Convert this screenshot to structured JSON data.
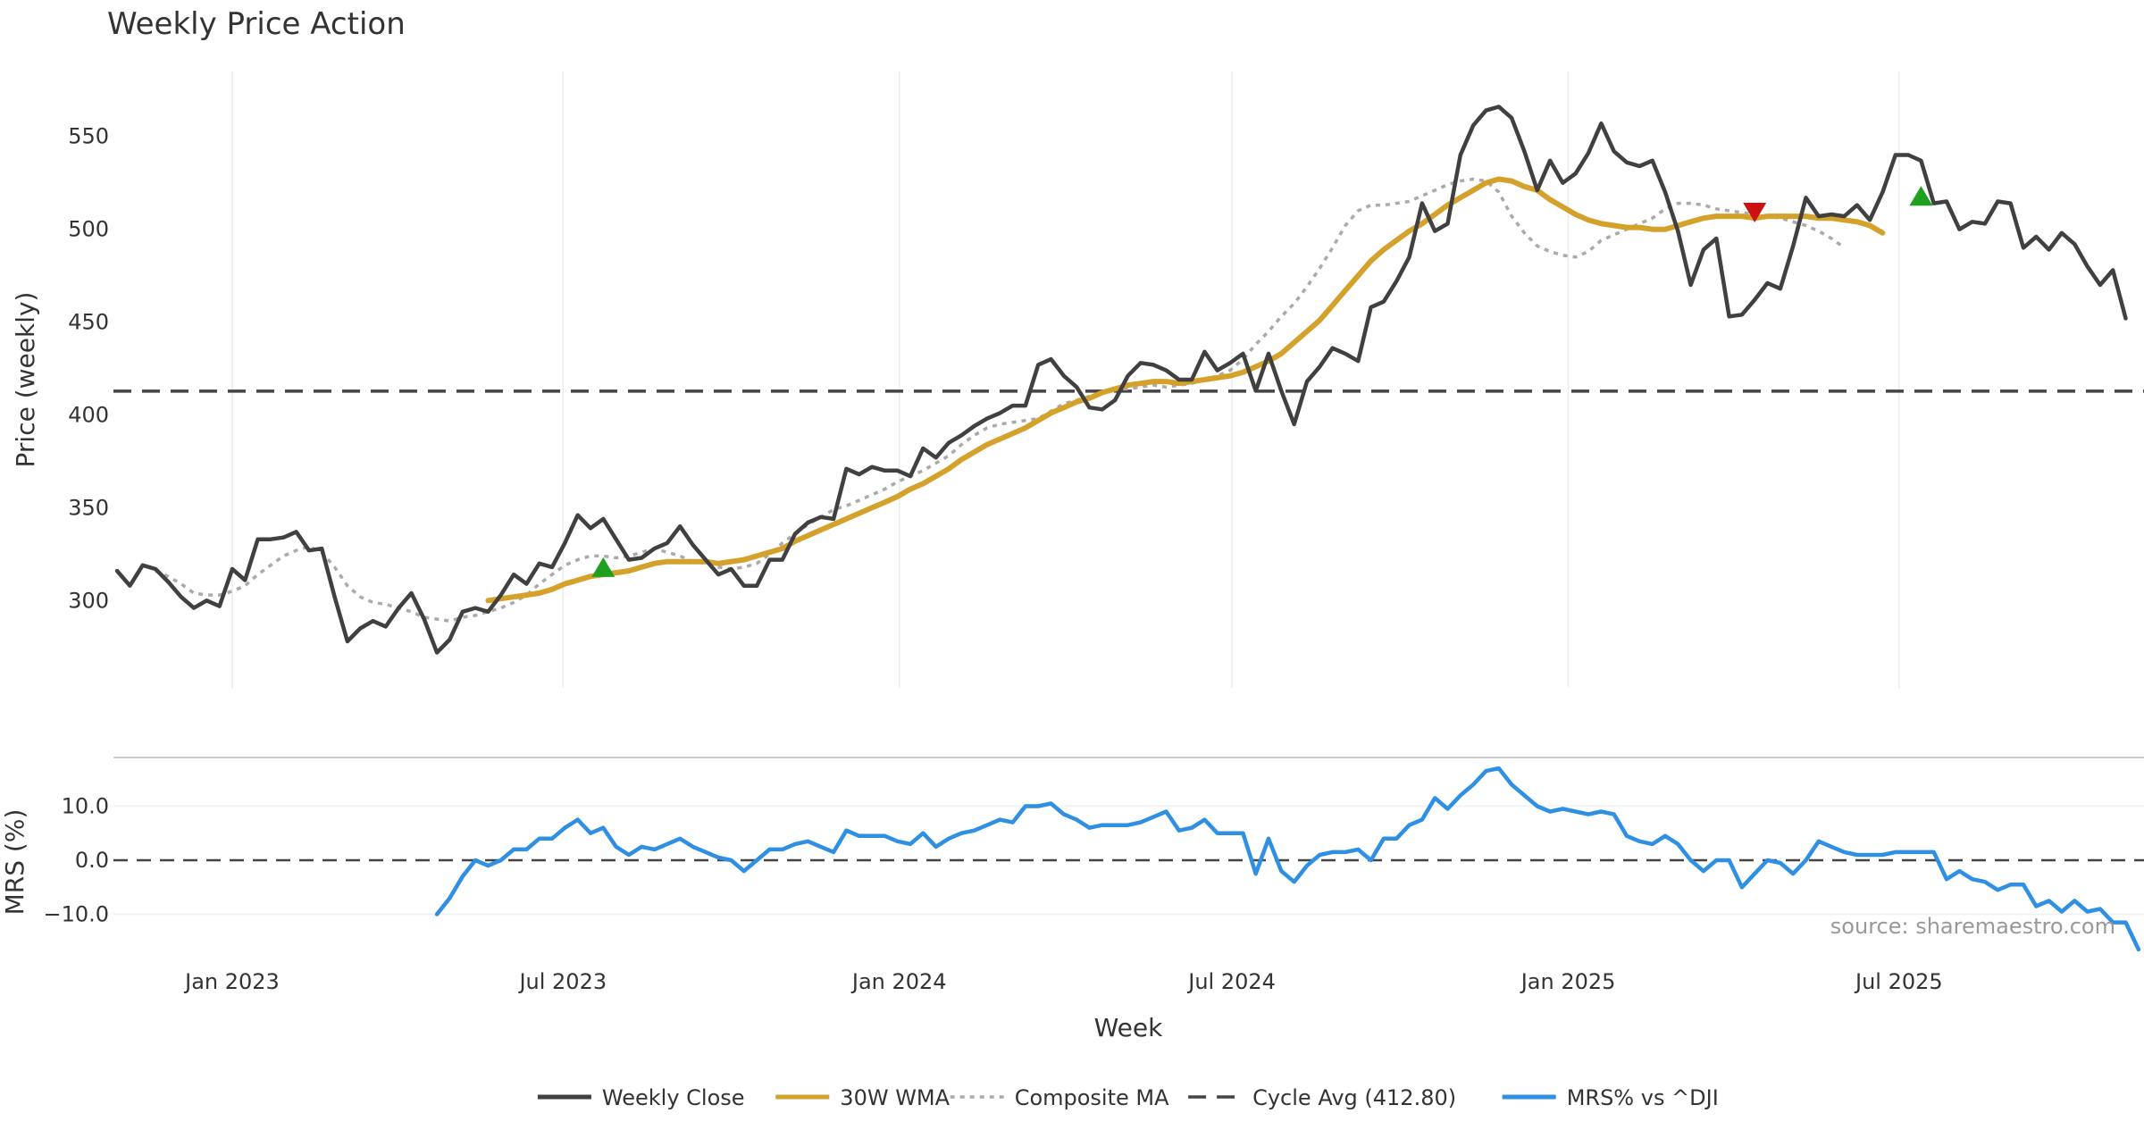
{
  "chart_data": [
    {
      "type": "line",
      "title": "Weekly Price Action",
      "ylabel": "Price (weekly)",
      "xlabel": "",
      "x_tick_labels": [
        "Jan 2023",
        "Jul 2023",
        "Jan 2024",
        "Jul 2024",
        "Jan 2025",
        "Jul 2025"
      ],
      "x_tick_dates": [
        "2023-01-01",
        "2023-07-01",
        "2024-01-01",
        "2024-07-01",
        "2025-01-01",
        "2025-07-01"
      ],
      "xlim": [
        "2022-10-28",
        "2025-11-12"
      ],
      "y_ticks": [
        300,
        350,
        400,
        450,
        500,
        550
      ],
      "ylim": [
        253,
        585
      ],
      "grid": true,
      "series": [
        {
          "name": "Weekly Close",
          "color": "#404040",
          "style": "solid",
          "start": "2022-10-30",
          "values": [
            316,
            308,
            319,
            317,
            310,
            302,
            296,
            300,
            297,
            317,
            311,
            333,
            333,
            334,
            337,
            327,
            328,
            302,
            278,
            285,
            289,
            286,
            296,
            304,
            290,
            272,
            279,
            294,
            296,
            294,
            303,
            314,
            309,
            320,
            318,
            331,
            346,
            339,
            344,
            333,
            322,
            323,
            328,
            331,
            340,
            330,
            322,
            314,
            317,
            308,
            308,
            322,
            322,
            336,
            342,
            345,
            344,
            371,
            368,
            372,
            370,
            370,
            367,
            382,
            377,
            385,
            389,
            394,
            398,
            401,
            405,
            405,
            427,
            430,
            421,
            415,
            404,
            403,
            408,
            421,
            428,
            427,
            424,
            419,
            419,
            434,
            424,
            428,
            433,
            413,
            433,
            413,
            395,
            418,
            426,
            436,
            433,
            429,
            458,
            461,
            472,
            485,
            514,
            499,
            503,
            540,
            556,
            564,
            566,
            560,
            542,
            521,
            537,
            525,
            530,
            541,
            557,
            542,
            536,
            534,
            537,
            520,
            499,
            470,
            489,
            495,
            453,
            454,
            462,
            471,
            468,
            491,
            517,
            507,
            508,
            507,
            513,
            505,
            520,
            540,
            540,
            537,
            514,
            515,
            500,
            504,
            503,
            515,
            514,
            490,
            496,
            489,
            498,
            492,
            480,
            470,
            478,
            452
          ]
        },
        {
          "name": "30W WMA",
          "color": "#D4A12A",
          "style": "solid",
          "start": "2023-05-21",
          "values": [
            300,
            301,
            302,
            303,
            304,
            306,
            309,
            311,
            313,
            314,
            315,
            316,
            318,
            320,
            321,
            321,
            321,
            321,
            320,
            321,
            322,
            324,
            326,
            328,
            332,
            335,
            338,
            341,
            344,
            347,
            350,
            353,
            356,
            360,
            363,
            367,
            371,
            376,
            380,
            384,
            387,
            390,
            393,
            397,
            401,
            404,
            407,
            409,
            412,
            414,
            416,
            417,
            418,
            418,
            417,
            418,
            419,
            420,
            421,
            423,
            426,
            429,
            433,
            439,
            445,
            451,
            459,
            467,
            475,
            483,
            489,
            494,
            499,
            503,
            508,
            513,
            517,
            521,
            525,
            527,
            526,
            523,
            521,
            516,
            512,
            508,
            505,
            503,
            502,
            501,
            501,
            500,
            500,
            502,
            504,
            506,
            507,
            507,
            507,
            506,
            507,
            507,
            507,
            507,
            506,
            506,
            505,
            504,
            502,
            498
          ]
        },
        {
          "name": "Composite MA",
          "color": "#AAAAAA",
          "style": "dotted",
          "start": "2022-11-20",
          "values": [
            316,
            313,
            309,
            304,
            303,
            303,
            305,
            308,
            314,
            319,
            324,
            327,
            329,
            326,
            318,
            308,
            302,
            299,
            298,
            296,
            294,
            291,
            290,
            289,
            291,
            292,
            294,
            296,
            299,
            303,
            309,
            314,
            319,
            322,
            324,
            324,
            323,
            324,
            326,
            328,
            326,
            324,
            321,
            320,
            318,
            317,
            318,
            320,
            325,
            331,
            336,
            341,
            345,
            349,
            351,
            354,
            357,
            360,
            364,
            367,
            370,
            374,
            378,
            384,
            389,
            393,
            395,
            396,
            397,
            398,
            402,
            406,
            408,
            410,
            412,
            414,
            414,
            415,
            416,
            415,
            416,
            417,
            419,
            421,
            424,
            430,
            438,
            445,
            453,
            460,
            469,
            479,
            490,
            502,
            510,
            513,
            513,
            514,
            515,
            518,
            521,
            524,
            526,
            527,
            526,
            520,
            507,
            498,
            491,
            488,
            486,
            485,
            488,
            494,
            497,
            500,
            503,
            506,
            511,
            514,
            514,
            513,
            511,
            510,
            509,
            508,
            507,
            506,
            504,
            502,
            499,
            495,
            490
          ]
        }
      ],
      "reference_lines": [
        {
          "name": "Cycle Avg (412.80)",
          "y": 412.8,
          "color": "#444444",
          "style": "dashed"
        }
      ],
      "markers": [
        {
          "shape": "triangle-up",
          "color": "#1FA01F",
          "x": "2023-07-23",
          "y": 318
        },
        {
          "shape": "triangle-down",
          "color": "#CC1111",
          "x": "2025-04-13",
          "y": 509
        },
        {
          "shape": "triangle-up",
          "color": "#1FA01F",
          "x": "2025-07-13",
          "y": 518
        }
      ]
    },
    {
      "type": "line",
      "ylabel": "MRS (%)",
      "xlabel": "Week",
      "y_ticks": [
        -10,
        0,
        10
      ],
      "y_tick_labels": [
        "−10.0",
        "0.0",
        "10.0"
      ],
      "ylim": [
        -18.5,
        19
      ],
      "grid": true,
      "series": [
        {
          "name": "MRS% vs ^DJI",
          "color": "#2E8FE3",
          "style": "solid",
          "start": "2023-04-23",
          "values": [
            -10,
            -7,
            -3,
            0,
            -1,
            0,
            2,
            2,
            4,
            4,
            6,
            7.5,
            5,
            6,
            2.5,
            1,
            2.5,
            2,
            3,
            4,
            2.5,
            1.5,
            0.5,
            0,
            -2,
            0,
            2,
            2,
            3,
            3.5,
            2.5,
            1.5,
            5.5,
            4.5,
            4.5,
            4.5,
            3.5,
            3,
            5,
            2.5,
            4,
            5,
            5.5,
            6.5,
            7.5,
            7,
            10,
            10,
            10.5,
            8.5,
            7.5,
            6,
            6.5,
            6.5,
            6.5,
            7,
            8,
            9,
            5.5,
            6,
            7.5,
            5,
            5,
            5,
            -2.5,
            4,
            -2,
            -4,
            -1,
            1,
            1.5,
            1.5,
            2,
            0,
            4,
            4,
            6.5,
            7.5,
            11.5,
            9.5,
            12,
            14,
            16.5,
            17,
            14,
            12,
            10,
            9,
            9.5,
            9,
            8.5,
            9,
            8.5,
            4.5,
            3.5,
            3,
            4.5,
            3,
            0,
            -2,
            0,
            0,
            -5,
            -2.5,
            0,
            -0.5,
            -2.5,
            0,
            3.5,
            2.5,
            1.5,
            1,
            1,
            1,
            1.5,
            1.5,
            1.5,
            1.5,
            -3.5,
            -2,
            -3.5,
            -4,
            -5.5,
            -4.5,
            -4.5,
            -8.5,
            -7.5,
            -9.5,
            -7.5,
            -9.5,
            -9,
            -11.5,
            -11.5,
            -16.5
          ]
        }
      ],
      "reference_lines": [
        {
          "y": 0,
          "color": "#444444",
          "style": "dashed"
        }
      ]
    }
  ],
  "legend": {
    "placement": "bottom-center",
    "items": [
      {
        "label": "Weekly Close",
        "color": "#404040",
        "style": "solid"
      },
      {
        "label": "30W WMA",
        "color": "#D4A12A",
        "style": "solid"
      },
      {
        "label": "Composite MA",
        "color": "#AAAAAA",
        "style": "dotted"
      },
      {
        "label": "Cycle Avg (412.80)",
        "color": "#444444",
        "style": "dashed"
      },
      {
        "label": "MRS% vs ^DJI",
        "color": "#2E8FE3",
        "style": "solid"
      }
    ]
  },
  "source_text": "source: sharemaestro.com"
}
